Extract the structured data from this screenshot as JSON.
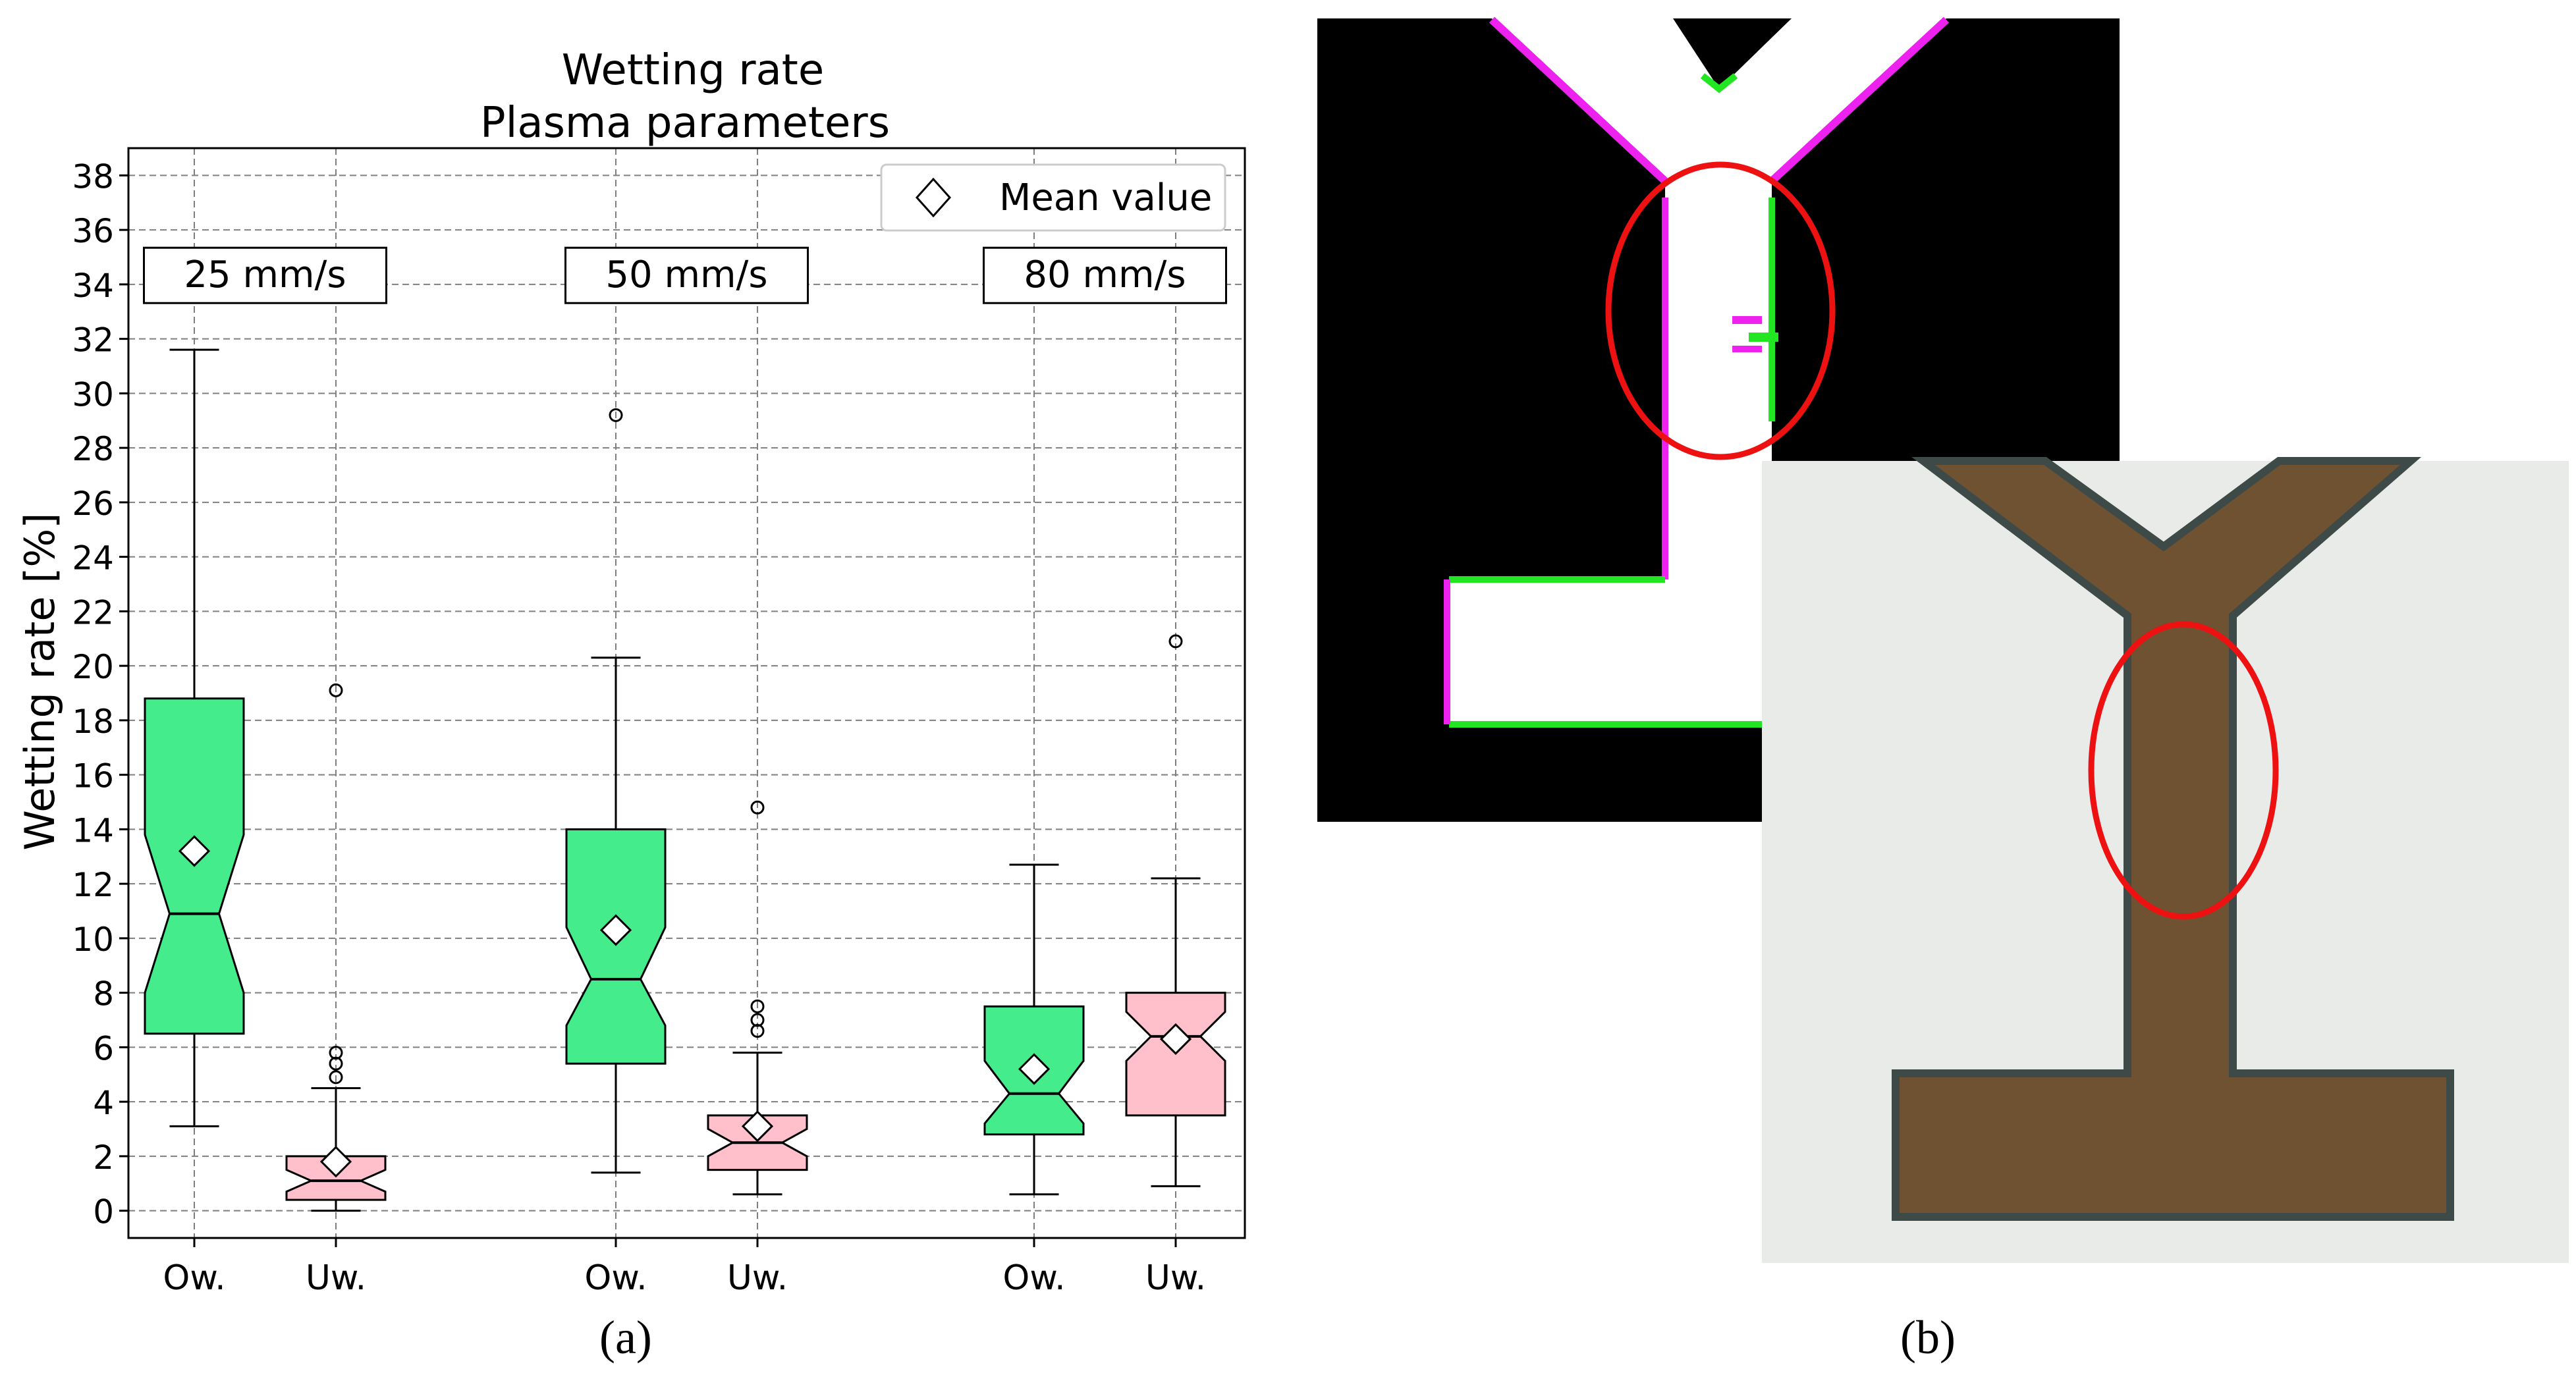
{
  "chart_data": {
    "type": "box",
    "title": [
      "Wetting rate",
      "Plasma parameters"
    ],
    "ylabel": "Wetting rate [%]",
    "xlabel": "",
    "ylim": [
      -1,
      39
    ],
    "yticks": [
      0,
      2,
      4,
      6,
      8,
      10,
      12,
      14,
      16,
      18,
      20,
      22,
      24,
      26,
      28,
      30,
      32,
      34,
      36,
      38
    ],
    "grid": true,
    "notched": true,
    "legend": {
      "entries": [
        "Mean value"
      ],
      "marker": "diamond",
      "position": "top-right"
    },
    "groups": [
      "25 mm/s",
      "50 mm/s",
      "80 mm/s"
    ],
    "categories": [
      "Ow.",
      "Uw.",
      "Ow.",
      "Uw.",
      "Ow.",
      "Uw."
    ],
    "colors": {
      "Ow.": "#45ec8c",
      "Uw.": "#ffc0cb"
    },
    "boxes": [
      {
        "group": "25 mm/s",
        "label": "Ow.",
        "whisker_low": 3.1,
        "q1": 6.5,
        "median": 10.9,
        "q3": 18.8,
        "whisker_high": 31.6,
        "notch_low": 8.0,
        "notch_high": 13.8,
        "mean": 13.2,
        "outliers": []
      },
      {
        "group": "25 mm/s",
        "label": "Uw.",
        "whisker_low": 0.0,
        "q1": 0.4,
        "median": 1.1,
        "q3": 2.0,
        "whisker_high": 4.5,
        "notch_low": 0.7,
        "notch_high": 1.5,
        "mean": 1.8,
        "outliers": [
          4.9,
          5.4,
          5.8,
          19.1
        ]
      },
      {
        "group": "50 mm/s",
        "label": "Ow.",
        "whisker_low": 1.4,
        "q1": 5.4,
        "median": 8.5,
        "q3": 14.0,
        "whisker_high": 20.3,
        "notch_low": 6.8,
        "notch_high": 10.4,
        "mean": 10.3,
        "outliers": [
          29.2
        ]
      },
      {
        "group": "50 mm/s",
        "label": "Uw.",
        "whisker_low": 0.6,
        "q1": 1.5,
        "median": 2.5,
        "q3": 3.5,
        "whisker_high": 5.8,
        "notch_low": 2.0,
        "notch_high": 3.0,
        "mean": 3.1,
        "outliers": [
          6.6,
          7.0,
          7.5,
          14.8
        ]
      },
      {
        "group": "80 mm/s",
        "label": "Ow.",
        "whisker_low": 0.6,
        "q1": 2.8,
        "median": 4.3,
        "q3": 7.5,
        "whisker_high": 12.7,
        "notch_low": 3.2,
        "notch_high": 5.5,
        "mean": 5.2,
        "outliers": []
      },
      {
        "group": "80 mm/s",
        "label": "Uw.",
        "whisker_low": 0.9,
        "q1": 3.5,
        "median": 6.4,
        "q3": 8.0,
        "whisker_high": 12.2,
        "notch_low": 5.5,
        "notch_high": 7.3,
        "mean": 6.3,
        "outliers": [
          20.9
        ]
      }
    ]
  },
  "panels": {
    "a_label": "(a)",
    "b_label": "(b)"
  },
  "photo_colors": {
    "binary_background": "#000000",
    "binary_track": "#ffffff",
    "edge_green": "#22e622",
    "edge_magenta": "#ee22ee",
    "photo_background": "#e9ebe9",
    "photo_track": "#6e5232",
    "photo_track_edge": "#3d4a48",
    "highlight_circle": "#ee1111"
  }
}
